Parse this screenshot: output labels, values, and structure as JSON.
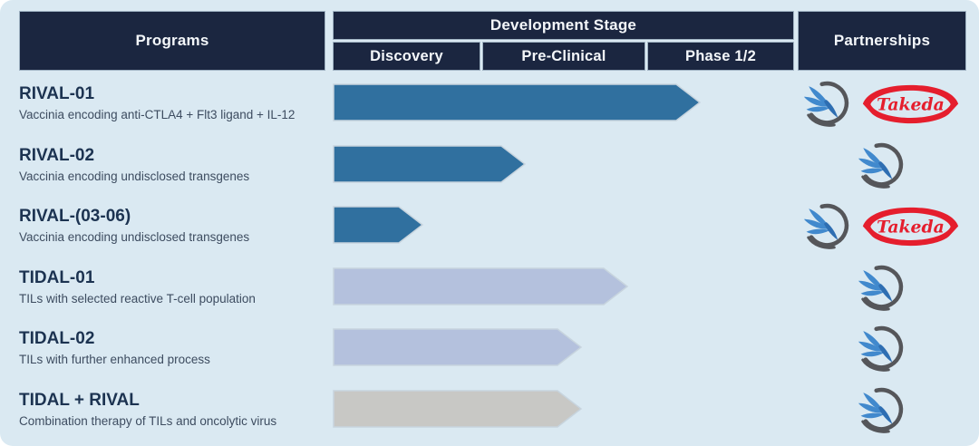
{
  "header": {
    "programs": "Programs",
    "development_stage": "Development Stage",
    "stages": [
      "Discovery",
      "Pre-Clinical",
      "Phase 1/2"
    ],
    "partnerships": "Partnerships"
  },
  "partner_labels": {
    "takeda": "Takeda"
  },
  "colors": {
    "background": "#DAE9F2",
    "header_bg": "#1B2640",
    "rival_bar": "#30709F",
    "tidal_bar": "#B4C1DD",
    "combo_bar": "#C8C8C5",
    "bar_edge": "#C7D4DE",
    "title_text": "#1C3351",
    "subtitle_text": "#3D4C60",
    "takeda_red": "#E51E2D",
    "logo_gray": "#55565A",
    "logo_blue": "#4189CD",
    "logo_dark_blue": "#2E6EB2"
  },
  "programs": [
    {
      "name": "RIVAL-01",
      "description": "Vaccinia encoding anti-CTLA4 + Flt3 ligand + IL-12",
      "stage_reached": "Phase 1/2",
      "progress_stages": 2.36,
      "bar_color": "#30709F",
      "partners": [
        "company-bird",
        "takeda"
      ]
    },
    {
      "name": "RIVAL-02",
      "description": "Vaccinia encoding undisclosed transgenes",
      "stage_reached": "Pre-Clinical",
      "progress_stages": 1.26,
      "bar_color": "#30709F",
      "partners": [
        "company-bird"
      ]
    },
    {
      "name": "RIVAL-(03-06)",
      "description": "Vaccinia encoding undisclosed transgenes",
      "stage_reached": "Discovery",
      "progress_stages": 0.6,
      "bar_color": "#30709F",
      "partners": [
        "company-bird",
        "takeda"
      ]
    },
    {
      "name": "TIDAL-01",
      "description": "TILs with selected reactive T-cell population",
      "stage_reached": "Pre-Clinical",
      "progress_stages": 1.88,
      "bar_color": "#B4C1DD",
      "partners": [
        "company-bird"
      ]
    },
    {
      "name": "TIDAL-02",
      "description": "TILs with further enhanced process",
      "stage_reached": "Pre-Clinical",
      "progress_stages": 1.6,
      "bar_color": "#B4C1DD",
      "partners": [
        "company-bird"
      ]
    },
    {
      "name": "TIDAL + RIVAL",
      "description": "Combination therapy of TILs and oncolytic virus",
      "stage_reached": "Pre-Clinical",
      "progress_stages": 1.6,
      "bar_color": "#C8C8C5",
      "partners": [
        "company-bird"
      ]
    }
  ],
  "chart_data": {
    "type": "bar",
    "orientation": "horizontal",
    "title": "",
    "xlabel": "Development Stage",
    "ylabel": "Programs",
    "x_stage_axis": [
      "Discovery",
      "Pre-Clinical",
      "Phase 1/2"
    ],
    "xlim_stage_units": [
      0,
      3
    ],
    "grid": false,
    "legend": false,
    "categories": [
      "RIVAL-01",
      "RIVAL-02",
      "RIVAL-(03-06)",
      "TIDAL-01",
      "TIDAL-02",
      "TIDAL + RIVAL"
    ],
    "values_stage_units": [
      2.36,
      1.26,
      0.6,
      1.88,
      1.6,
      1.6
    ],
    "bar_colors": [
      "#30709F",
      "#30709F",
      "#30709F",
      "#B4C1DD",
      "#B4C1DD",
      "#C8C8C5"
    ],
    "partnerships": [
      [
        "company-bird",
        "Takeda"
      ],
      [
        "company-bird"
      ],
      [
        "company-bird",
        "Takeda"
      ],
      [
        "company-bird"
      ],
      [
        "company-bird"
      ],
      [
        "company-bird"
      ]
    ]
  }
}
